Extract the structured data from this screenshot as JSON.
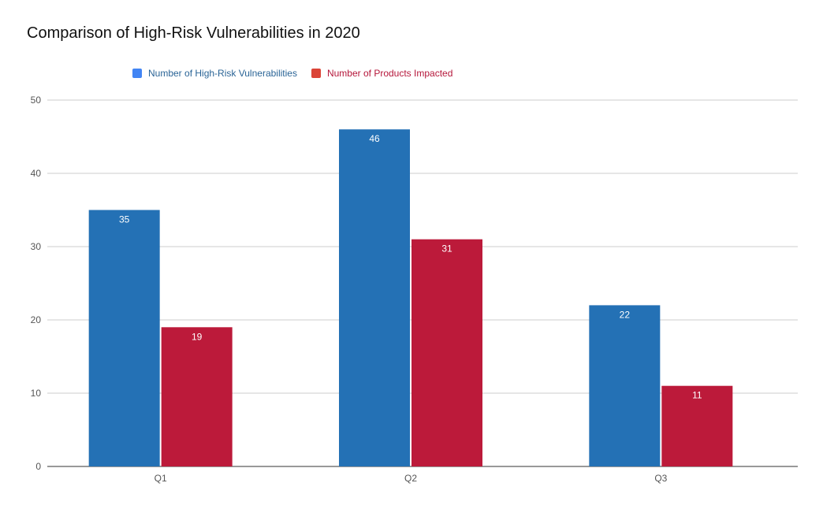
{
  "chart_data": {
    "type": "bar",
    "title": "Comparison of High-Risk Vulnerabilities in 2020",
    "categories": [
      "Q1",
      "Q2",
      "Q3"
    ],
    "series": [
      {
        "name": "Number of High-Risk Vulnerabilities",
        "values": [
          35,
          46,
          22
        ],
        "color": "#2471b5",
        "legend_color": "#4285f4",
        "text_color": "#2a6496"
      },
      {
        "name": "Number of Products Impacted",
        "values": [
          19,
          31,
          11
        ],
        "color": "#bc1a3a",
        "legend_color": "#db4437",
        "text_color": "#b5163a"
      }
    ],
    "ylim": [
      0,
      50
    ],
    "yticks": [
      0,
      10,
      20,
      30,
      40,
      50
    ],
    "grid": true,
    "legend_position": "top",
    "xlabel": "",
    "ylabel": ""
  }
}
